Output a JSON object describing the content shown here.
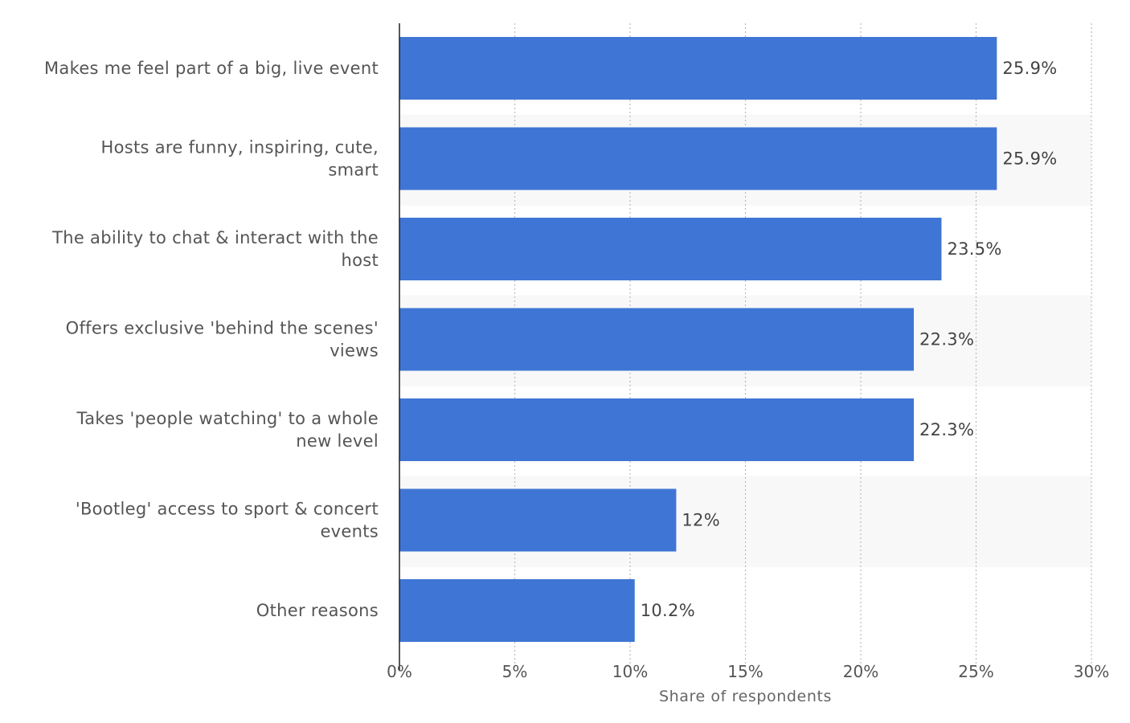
{
  "chart_data": {
    "type": "bar",
    "orientation": "horizontal",
    "categories": [
      [
        "Makes me feel part of a big, live event"
      ],
      [
        "Hosts are funny, inspiring, cute,",
        "smart"
      ],
      [
        "The ability to chat & interact with the",
        "host"
      ],
      [
        "Offers exclusive 'behind the scenes'",
        "views"
      ],
      [
        "Takes 'people watching' to a whole",
        "new level"
      ],
      [
        "'Bootleg' access to sport & concert",
        "events"
      ],
      [
        "Other reasons"
      ]
    ],
    "values": [
      25.9,
      25.9,
      23.5,
      22.3,
      22.3,
      12,
      10.2
    ],
    "value_labels": [
      "25.9%",
      "25.9%",
      "23.5%",
      "22.3%",
      "22.3%",
      "12%",
      "10.2%"
    ],
    "xticks": [
      0,
      5,
      10,
      15,
      20,
      25,
      30
    ],
    "xtick_labels": [
      "0%",
      "5%",
      "10%",
      "15%",
      "20%",
      "25%",
      "30%"
    ],
    "xlim": [
      0,
      30
    ],
    "xlabel": "Share of respondents",
    "ylabel": "",
    "title": "",
    "grid": "vertical dotted",
    "colors": {
      "bar": "#3f76d5",
      "stripe": "#f8f8f8",
      "grid": "#bbbbbb",
      "axis": "#222222"
    }
  }
}
